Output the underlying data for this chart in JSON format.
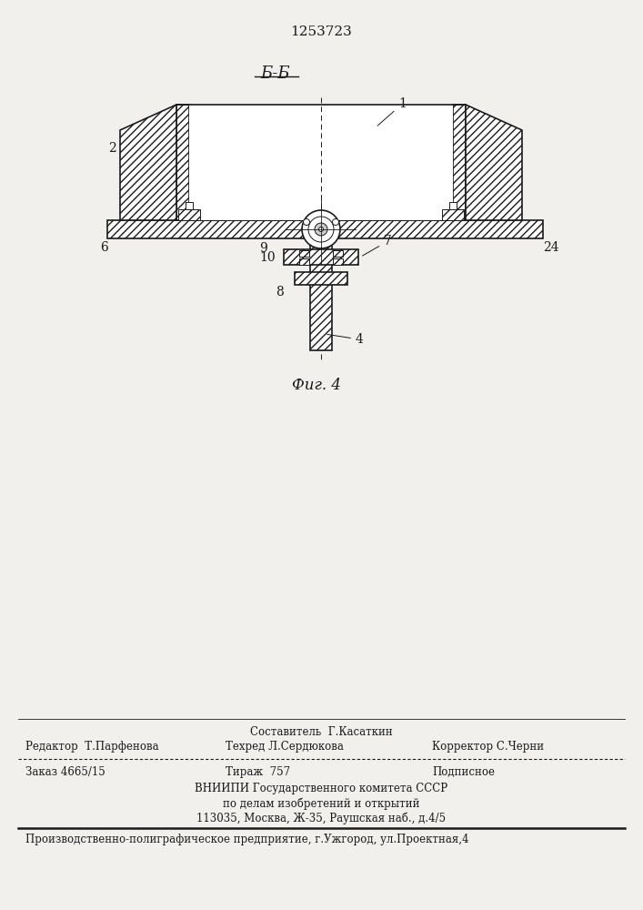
{
  "patent_number": "1253723",
  "section_label": "Б-Б",
  "fig_label": "Фиг. 4",
  "bg_color": "#f2f0ec",
  "line_color": "#1a1a1a",
  "footer": {
    "line1_center": "Составитель  Г.Касаткин",
    "line2_left": "Редактор  Т.Парфенова",
    "line2_center": "Техред Л.Сердюкова",
    "line2_right": "Корректор С.Черни",
    "line3_left": "Заказ 4665/15",
    "line3_center": "Тираж  757",
    "line3_right": "Подписное",
    "line4_center": "ВНИИПИ Государственного комитета СССР",
    "line5_center": "по делам изобретений и открытий",
    "line6_center": "113035, Москва, Ж-35, Раушская наб., д.4/5",
    "line7": "Производственно-полиграфическое предприятие, г.Ужгород, ул.Проектная,4"
  }
}
